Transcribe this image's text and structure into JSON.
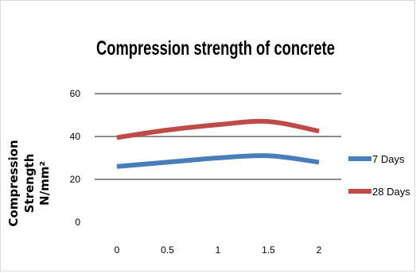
{
  "chart_data": {
    "type": "line",
    "title": "Compression strength of concrete",
    "xlabel": "",
    "ylabel_lines": [
      "Compression",
      "Strength",
      "N/mm²"
    ],
    "categories": [
      "0",
      "0.5",
      "1",
      "1.5",
      "2"
    ],
    "ylim": [
      0,
      60
    ],
    "yticks": [
      0,
      20,
      40,
      60
    ],
    "grid": true,
    "legend_position": "right",
    "series": [
      {
        "name": "7 Days",
        "color": "#4a7ebb",
        "values": [
          26,
          28,
          30,
          31,
          28
        ]
      },
      {
        "name": "28 Days",
        "color": "#be4b48",
        "values": [
          39.5,
          43,
          45.5,
          47,
          42.5
        ]
      }
    ]
  }
}
